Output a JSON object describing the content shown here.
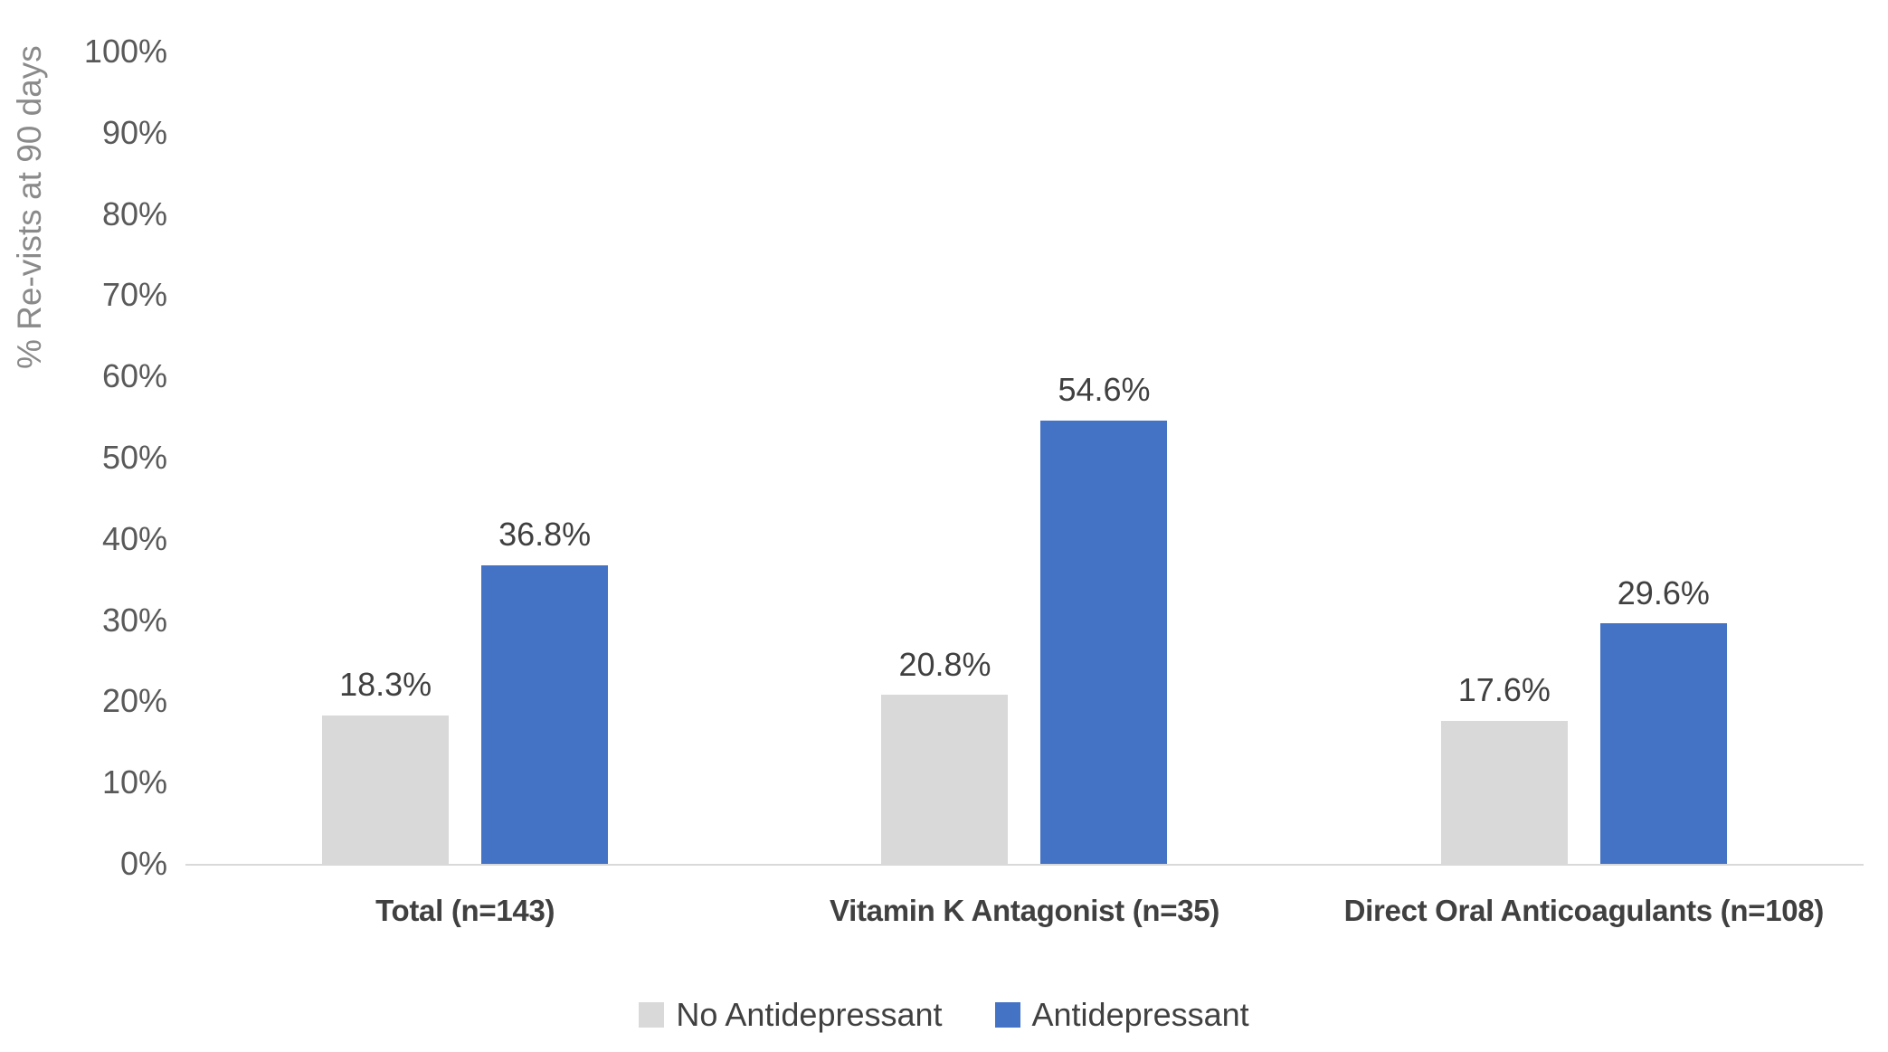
{
  "chart_data": {
    "type": "bar",
    "ylabel": "% Re-vists at 90 days",
    "xlabel": "",
    "categories": [
      "Total (n=143)",
      "Vitamin K Antagonist (n=35)",
      "Direct Oral Anticoagulants (n=108)"
    ],
    "series": [
      {
        "name": "No Antidepressant",
        "color": "#D9D9D9",
        "values": [
          18.3,
          20.8,
          17.6
        ],
        "data_labels": [
          "18.3%",
          "20.8%",
          "17.6%"
        ]
      },
      {
        "name": "Antidepressant",
        "color": "#4472C4",
        "values": [
          36.8,
          54.6,
          29.6
        ],
        "data_labels": [
          "36.8%",
          "54.6%",
          "29.6%"
        ]
      }
    ],
    "ylim": [
      0,
      100
    ],
    "ytick_labels": [
      "0%",
      "10%",
      "20%",
      "30%",
      "40%",
      "50%",
      "60%",
      "70%",
      "80%",
      "90%",
      "100%"
    ],
    "grid": false,
    "legend_position": "bottom",
    "colors": {
      "background": "#FFFFFF",
      "axis_line": "#D9D9D9",
      "tick_text": "#595959",
      "label_text": "#404040",
      "axis_title_text": "#8A8A8A"
    }
  }
}
